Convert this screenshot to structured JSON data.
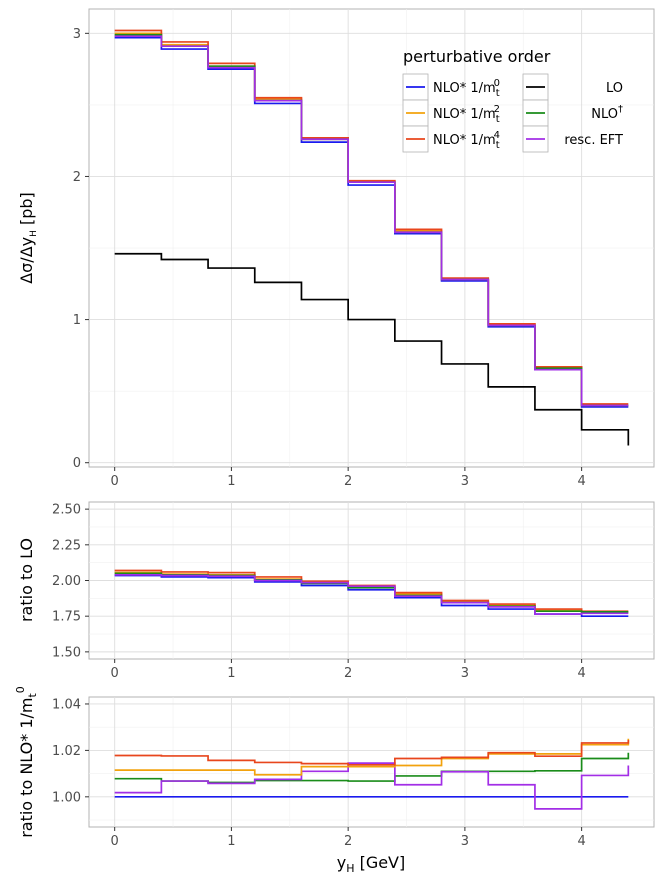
{
  "chart_data": [
    {
      "type": "line",
      "id": "main",
      "ylabel": "Δσ/Δy_H [pb]",
      "ylim": [
        -0.03,
        3.17
      ],
      "xlim": [
        -0.22,
        4.62
      ],
      "xticks": [
        "0",
        "1",
        "2",
        "3",
        "4"
      ],
      "yticks": [
        "0",
        "1",
        "2",
        "3"
      ],
      "bin_edges": [
        0,
        0.4,
        0.8,
        1.2,
        1.6,
        2.0,
        2.4,
        2.8,
        3.2,
        3.6,
        4.0,
        4.4
      ],
      "series": [
        {
          "name": "NLO* 1/m_t^0",
          "color": "#1a1aee",
          "values": [
            2.97,
            2.89,
            2.75,
            2.51,
            2.24,
            1.94,
            1.6,
            1.27,
            0.95,
            0.65,
            0.39
          ]
        },
        {
          "name": "NLO* 1/m_t^2",
          "color": "#f2a20d",
          "values": [
            3.0,
            2.92,
            2.77,
            2.54,
            2.26,
            1.96,
            1.62,
            1.28,
            0.96,
            0.66,
            0.4
          ]
        },
        {
          "name": "NLO* 1/m_t^4",
          "color": "#e8461c",
          "values": [
            3.02,
            2.94,
            2.79,
            2.55,
            2.27,
            1.97,
            1.63,
            1.29,
            0.97,
            0.67,
            0.41
          ]
        },
        {
          "name": "LO",
          "color": "#000000",
          "values": [
            1.46,
            1.42,
            1.36,
            1.26,
            1.14,
            1.0,
            0.85,
            0.69,
            0.53,
            0.37,
            0.23
          ]
        },
        {
          "name": "NLO†",
          "color": "#1a8c1a",
          "values": [
            2.99,
            2.91,
            2.77,
            2.53,
            2.26,
            1.96,
            1.61,
            1.28,
            0.96,
            0.66,
            0.4
          ]
        },
        {
          "name": "resc. EFT",
          "color": "#a22ee6",
          "values": [
            2.98,
            2.91,
            2.76,
            2.53,
            2.26,
            1.96,
            1.61,
            1.28,
            0.96,
            0.65,
            0.4
          ]
        }
      ],
      "lo_tail_end": 0.12,
      "legend": {
        "title": "perturbative order",
        "position": "top-right",
        "entries": [
          {
            "base": "NLO* 1/m",
            "sub": "t",
            "sup": "0",
            "color": "#1a1aee"
          },
          {
            "base": "NLO* 1/m",
            "sub": "t",
            "sup": "2",
            "color": "#f2a20d"
          },
          {
            "base": "NLO* 1/m",
            "sub": "t",
            "sup": "4",
            "color": "#e8461c"
          },
          {
            "base": "LO",
            "sub": "",
            "sup": "",
            "color": "#000000"
          },
          {
            "base": "NLO",
            "sub": "",
            "sup": "†",
            "color": "#1a8c1a"
          },
          {
            "base": "resc. EFT",
            "sub": "",
            "sup": "",
            "color": "#a22ee6"
          }
        ]
      }
    },
    {
      "type": "line",
      "id": "ratio-lo",
      "ylabel": "ratio to LO",
      "ylim": [
        1.45,
        2.55
      ],
      "xlim": [
        -0.22,
        4.62
      ],
      "xticks": [
        "0",
        "1",
        "2",
        "3",
        "4"
      ],
      "yticks": [
        "1.50",
        "1.75",
        "2.00",
        "2.25",
        "2.50"
      ],
      "bin_edges": [
        0,
        0.4,
        0.8,
        1.2,
        1.6,
        2.0,
        2.4,
        2.8,
        3.2,
        3.6,
        4.0,
        4.4
      ],
      "series": [
        {
          "name": "NLO* 1/m_t^0",
          "color": "#1a1aee",
          "values": [
            2.035,
            2.025,
            2.02,
            1.99,
            1.965,
            1.935,
            1.88,
            1.825,
            1.8,
            1.765,
            1.75
          ]
        },
        {
          "name": "NLO* 1/m_t^2",
          "color": "#f2a20d",
          "values": [
            2.055,
            2.045,
            2.04,
            2.01,
            1.985,
            1.955,
            1.905,
            1.85,
            1.825,
            1.79,
            1.775
          ]
        },
        {
          "name": "NLO* 1/m_t^4",
          "color": "#e8461c",
          "values": [
            2.07,
            2.06,
            2.055,
            2.025,
            1.995,
            1.965,
            1.915,
            1.86,
            1.835,
            1.8,
            1.785
          ]
        },
        {
          "name": "NLO†",
          "color": "#1a8c1a",
          "values": [
            2.05,
            2.04,
            2.035,
            2.005,
            1.98,
            1.95,
            1.895,
            1.845,
            1.82,
            1.785,
            1.78
          ]
        },
        {
          "name": "resc. EFT",
          "color": "#a22ee6",
          "values": [
            2.04,
            2.035,
            2.03,
            2.0,
            1.985,
            1.96,
            1.89,
            1.845,
            1.815,
            1.765,
            1.77
          ]
        }
      ]
    },
    {
      "type": "line",
      "id": "ratio-nlo",
      "ylabel": "ratio to NLO* 1/m_t^0",
      "ylim": [
        0.987,
        1.043
      ],
      "xlim": [
        -0.22,
        4.62
      ],
      "xticks": [
        "0",
        "1",
        "2",
        "3",
        "4"
      ],
      "yticks": [
        "1.00",
        "1.02",
        "1.04"
      ],
      "xlabel": "y_H [GeV]",
      "bin_edges": [
        0,
        0.4,
        0.8,
        1.2,
        1.6,
        2.0,
        2.4,
        2.8,
        3.2,
        3.6,
        4.0,
        4.4
      ],
      "series": [
        {
          "name": "NLO* 1/m_t^0",
          "color": "#1a1aee",
          "values": [
            1.0,
            1.0,
            1.0,
            1.0,
            1.0,
            1.0,
            1.0,
            1.0,
            1.0,
            1.0,
            1.0
          ]
        },
        {
          "name": "NLO† ",
          "color": "#1a8c1a",
          "values": [
            1.0078,
            1.0068,
            1.0062,
            1.007,
            1.007,
            1.0068,
            1.009,
            1.011,
            1.011,
            1.0112,
            1.0165
          ]
        },
        {
          "name": "resc. EFT",
          "color": "#a22ee6",
          "values": [
            1.0018,
            1.0068,
            1.0058,
            1.0075,
            1.011,
            1.0145,
            1.0052,
            1.0108,
            1.0052,
            0.9948,
            1.0092
          ]
        },
        {
          "name": "NLO* 1/m_t^2",
          "color": "#f2a20d",
          "values": [
            1.0115,
            1.0115,
            1.0115,
            1.0095,
            1.013,
            1.013,
            1.0135,
            1.0165,
            1.0185,
            1.0185,
            1.0225
          ]
        },
        {
          "name": "NLO* 1/m_t^4",
          "color": "#e8461c",
          "values": [
            1.0178,
            1.0176,
            1.0157,
            1.0148,
            1.0143,
            1.0138,
            1.0165,
            1.017,
            1.019,
            1.0175,
            1.0232
          ]
        }
      ],
      "tail_end": {
        "NLO† ": 1.019,
        "resc. EFT": 1.0135,
        "NLO* 1/m_t^2": 1.025,
        "NLO* 1/m_t^4": 1.0245
      }
    }
  ]
}
